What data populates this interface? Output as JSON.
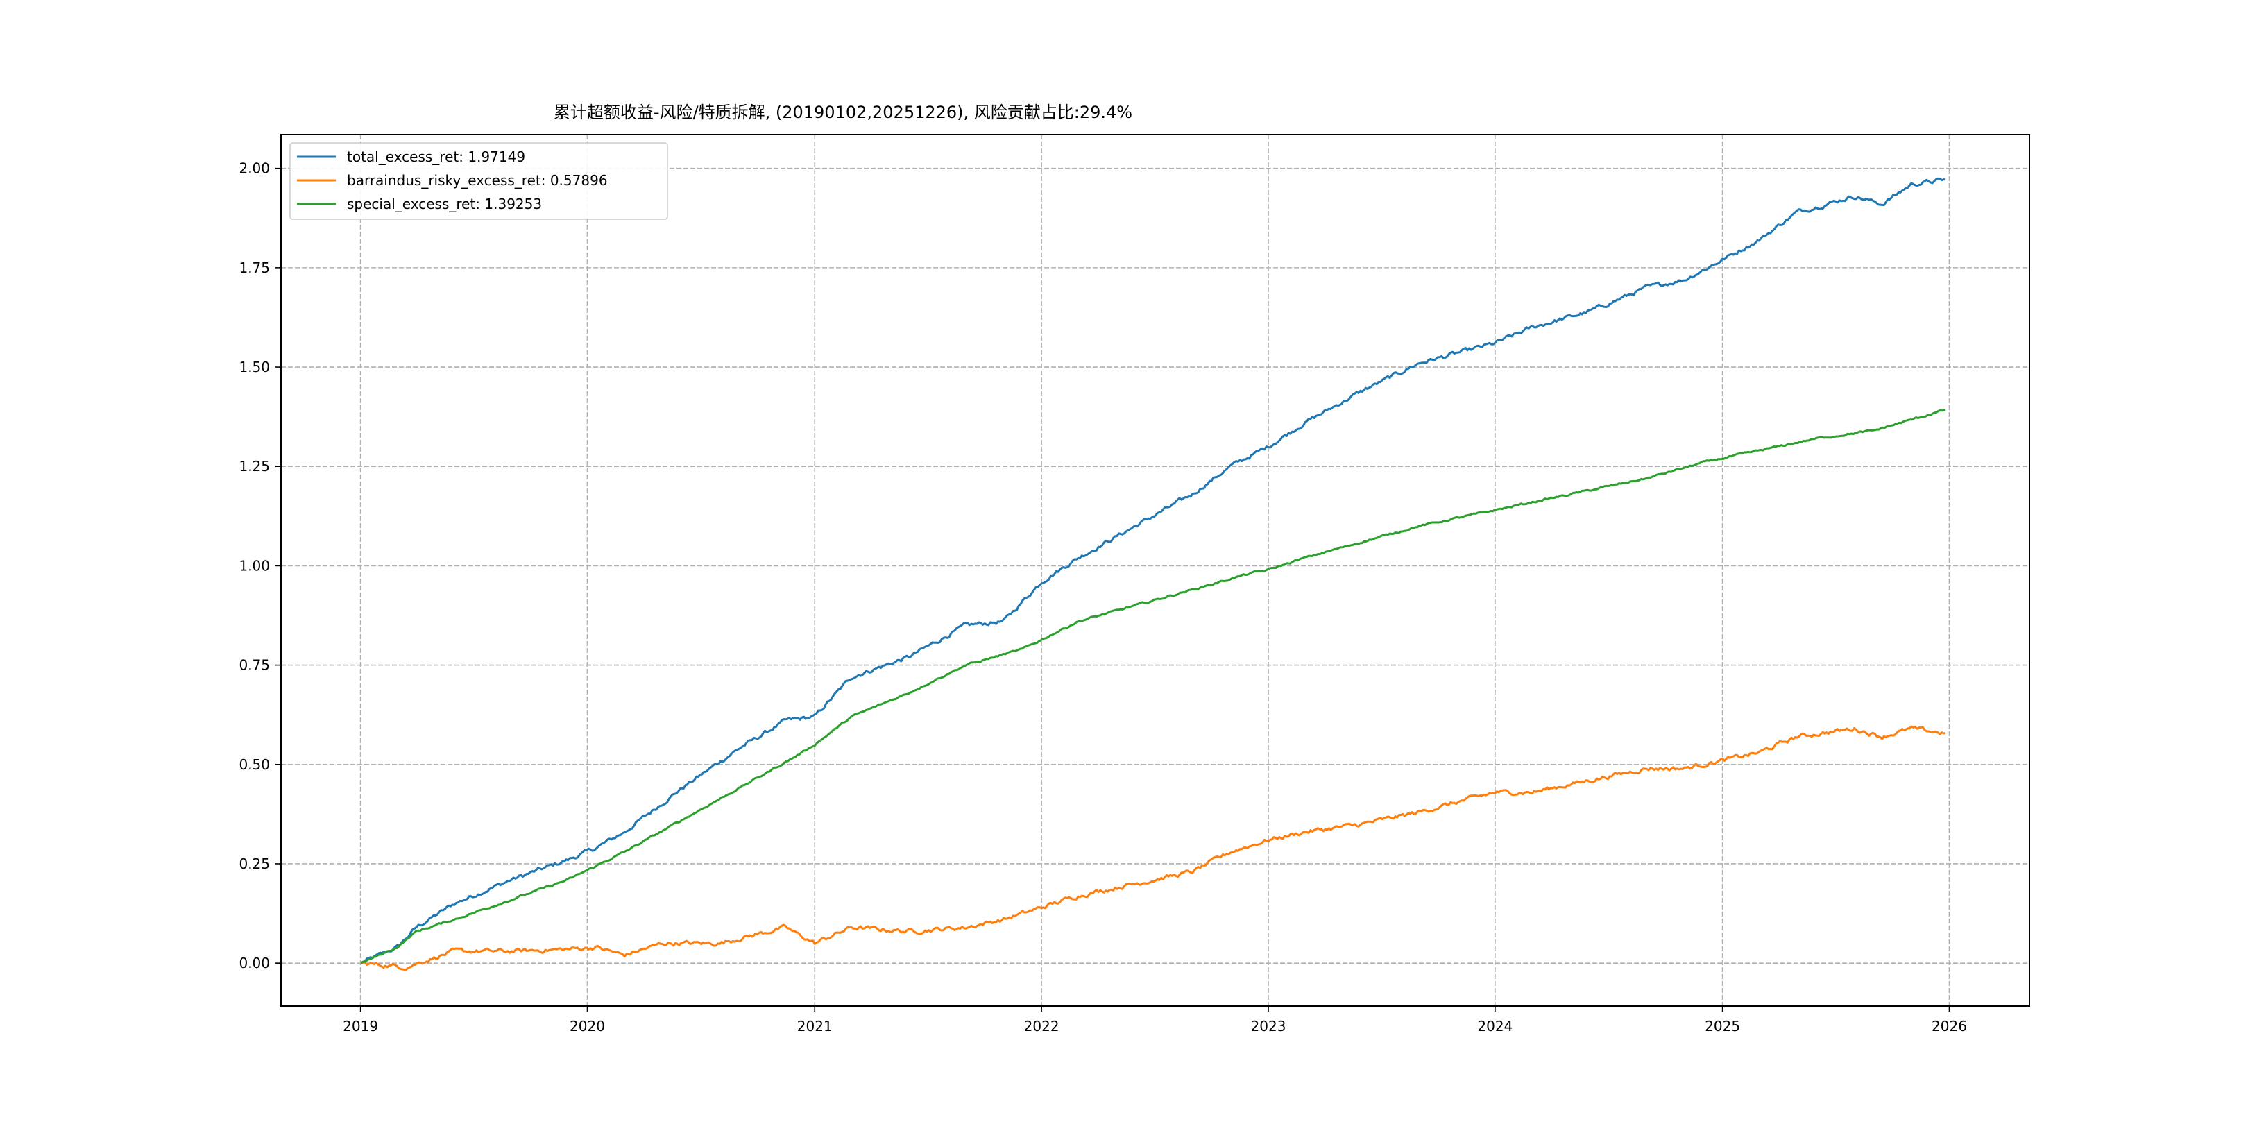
{
  "chart_data": {
    "type": "line",
    "title": "累计超额收益-风险/特质拆解, (20190102,20251226), 风险贡献占比:29.4%",
    "xlabel": "",
    "ylabel": "",
    "xlim": [
      "2018-08-26",
      "2026-05-10"
    ],
    "ylim": [
      -0.108,
      2.085
    ],
    "x_ticks": [
      "2019",
      "2020",
      "2021",
      "2022",
      "2023",
      "2024",
      "2025",
      "2026"
    ],
    "y_ticks": [
      "0.00",
      "0.25",
      "0.50",
      "0.75",
      "1.00",
      "1.25",
      "1.50",
      "1.75",
      "2.00"
    ],
    "grid": true,
    "legend_position": "top-left",
    "series": [
      {
        "name": "total_excess_ret",
        "legend_label": "total_excess_ret: 1.97149",
        "color": "#1f77b4",
        "x": [
          "2019-01-02",
          "2019-03-01",
          "2019-04-01",
          "2019-06-01",
          "2019-09-01",
          "2019-12-01",
          "2020-01-15",
          "2020-03-01",
          "2020-06-01",
          "2020-09-01",
          "2020-11-15",
          "2021-01-01",
          "2021-03-01",
          "2021-06-01",
          "2021-09-01",
          "2021-11-01",
          "2022-01-01",
          "2022-03-01",
          "2022-06-01",
          "2022-09-01",
          "2022-11-01",
          "2023-01-01",
          "2023-03-01",
          "2023-06-01",
          "2023-09-01",
          "2024-01-01",
          "2024-03-01",
          "2024-06-01",
          "2024-09-01",
          "2024-11-01",
          "2025-01-01",
          "2025-03-01",
          "2025-05-01",
          "2025-08-01",
          "2025-09-15",
          "2025-11-01",
          "2025-12-26"
        ],
        "y": [
          0.0,
          0.04,
          0.09,
          0.15,
          0.21,
          0.26,
          0.29,
          0.33,
          0.44,
          0.54,
          0.61,
          0.62,
          0.72,
          0.77,
          0.85,
          0.86,
          0.96,
          1.02,
          1.1,
          1.18,
          1.25,
          1.3,
          1.36,
          1.44,
          1.51,
          1.56,
          1.6,
          1.64,
          1.7,
          1.72,
          1.77,
          1.82,
          1.89,
          1.93,
          1.91,
          1.96,
          1.97149
        ]
      },
      {
        "name": "barraindus_risky_excess_ret",
        "legend_label": "barraindus_risky_excess_ret: 0.57896",
        "color": "#ff7f0e",
        "x": [
          "2019-01-02",
          "2019-03-15",
          "2019-06-01",
          "2019-09-01",
          "2019-12-01",
          "2020-01-15",
          "2020-03-01",
          "2020-05-01",
          "2020-08-01",
          "2020-11-15",
          "2021-01-01",
          "2021-03-01",
          "2021-06-01",
          "2021-09-01",
          "2021-11-01",
          "2022-01-01",
          "2022-03-01",
          "2022-06-01",
          "2022-09-01",
          "2022-11-01",
          "2023-01-01",
          "2023-03-01",
          "2023-06-01",
          "2023-09-01",
          "2024-01-01",
          "2024-03-01",
          "2024-06-01",
          "2024-09-01",
          "2024-11-01",
          "2025-01-01",
          "2025-03-01",
          "2025-05-01",
          "2025-08-01",
          "2025-09-15",
          "2025-11-01",
          "2025-12-26"
        ],
        "y": [
          0.0,
          -0.01,
          0.03,
          0.03,
          0.035,
          0.04,
          0.02,
          0.05,
          0.05,
          0.09,
          0.05,
          0.09,
          0.08,
          0.09,
          0.11,
          0.14,
          0.17,
          0.2,
          0.23,
          0.28,
          0.31,
          0.33,
          0.35,
          0.38,
          0.43,
          0.43,
          0.46,
          0.49,
          0.49,
          0.51,
          0.53,
          0.57,
          0.59,
          0.57,
          0.59,
          0.57896
        ]
      },
      {
        "name": "special_excess_ret",
        "legend_label": "special_excess_ret: 1.39253",
        "color": "#2ca02c",
        "x": [
          "2019-01-02",
          "2019-03-01",
          "2019-04-01",
          "2019-06-01",
          "2019-09-01",
          "2019-12-01",
          "2020-03-01",
          "2020-06-01",
          "2020-09-01",
          "2020-12-01",
          "2021-01-01",
          "2021-03-01",
          "2021-06-01",
          "2021-09-01",
          "2021-12-01",
          "2022-03-01",
          "2022-06-01",
          "2022-09-01",
          "2022-12-01",
          "2023-01-01",
          "2023-03-01",
          "2023-06-01",
          "2023-09-01",
          "2023-12-01",
          "2024-03-01",
          "2024-06-01",
          "2024-09-01",
          "2024-12-01",
          "2025-03-01",
          "2025-06-01",
          "2025-09-01",
          "2025-12-26"
        ],
        "y": [
          0.0,
          0.04,
          0.08,
          0.11,
          0.16,
          0.21,
          0.28,
          0.36,
          0.44,
          0.52,
          0.55,
          0.62,
          0.68,
          0.75,
          0.79,
          0.86,
          0.9,
          0.94,
          0.98,
          0.99,
          1.02,
          1.06,
          1.1,
          1.13,
          1.16,
          1.19,
          1.22,
          1.26,
          1.29,
          1.32,
          1.34,
          1.39253
        ]
      }
    ]
  }
}
